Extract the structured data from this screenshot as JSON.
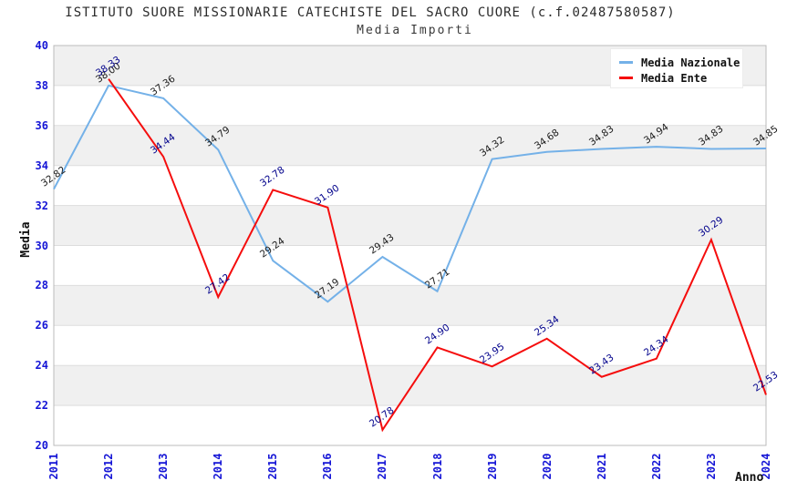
{
  "header": {
    "title": "ISTITUTO SUORE MISSIONARIE CATECHISTE DEL SACRO CUORE (c.f.02487580587)",
    "subtitle": "Media Importi"
  },
  "chart_data": {
    "type": "line",
    "title": "ISTITUTO SUORE MISSIONARIE CATECHISTE DEL SACRO CUORE (c.f.02487580587)",
    "subtitle": "Media Importi",
    "xlabel": "Anno",
    "ylabel": "Media",
    "x": [
      2011,
      2012,
      2013,
      2014,
      2015,
      2016,
      2017,
      2018,
      2019,
      2020,
      2021,
      2022,
      2023,
      2024
    ],
    "series": [
      {
        "name": "Media Nazionale",
        "color": "#74b1e8",
        "label_color": "#1a1a1a",
        "values": [
          32.82,
          38.0,
          37.36,
          34.79,
          29.24,
          27.19,
          29.43,
          27.71,
          34.32,
          34.68,
          34.83,
          34.94,
          34.83,
          34.85
        ]
      },
      {
        "name": "Media Ente",
        "color": "#f50d0d",
        "label_color": "#00008b",
        "values": [
          null,
          38.33,
          34.44,
          27.42,
          32.78,
          31.9,
          20.78,
          24.9,
          23.95,
          25.34,
          23.43,
          24.34,
          30.29,
          22.53
        ]
      }
    ],
    "ylim": [
      20,
      40
    ],
    "ytick_step": 2,
    "yticks": [
      20,
      22,
      24,
      26,
      28,
      30,
      32,
      34,
      36,
      38,
      40
    ],
    "grid": true,
    "alternating_bands": true,
    "legend_position": "top-right",
    "style": {
      "tick_label_color": "#1515d6",
      "band_color": "#f0f0f0",
      "grid_color": "#dddddd",
      "border_color": "#bbbbbb",
      "background": "#ffffff"
    }
  }
}
